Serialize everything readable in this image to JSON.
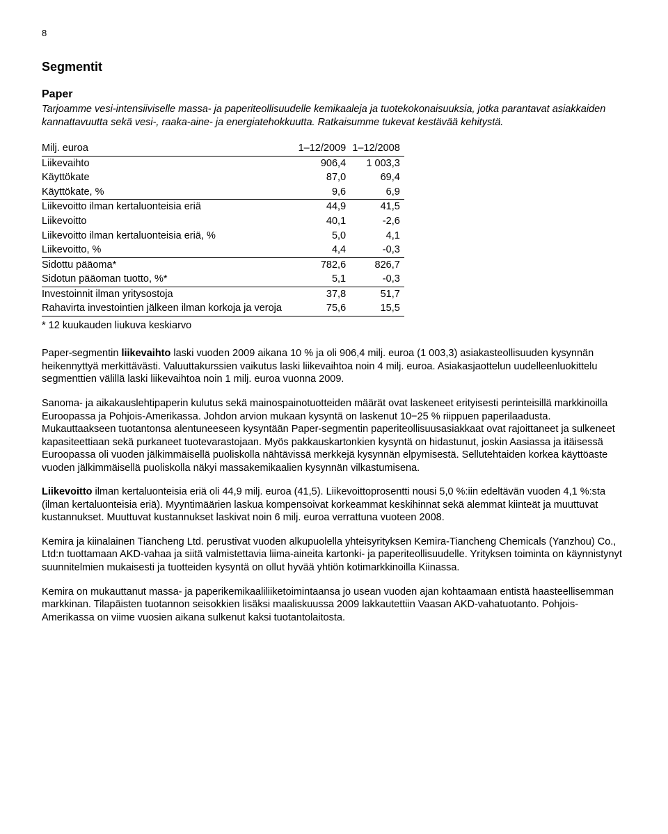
{
  "page_number": "8",
  "h_segments": "Segmentit",
  "h_paper": "Paper",
  "intro": "Tarjoamme vesi-intensiiviselle massa- ja paperiteollisuudelle kemikaaleja ja tuotekokonaisuuksia, jotka parantavat asiakkaiden kannattavuutta sekä vesi-, raaka-aine- ja energiatehokkuutta. Ratkaisumme tukevat kestävää kehitystä.",
  "table": {
    "header_label": "Milj. euroa",
    "col1": "1–12/2009",
    "col2": "1–12/2008",
    "rows": [
      {
        "label": "Liikevaihto",
        "v1": "906,4",
        "v2": "1 003,3",
        "underline": false
      },
      {
        "label": "Käyttökate",
        "v1": "87,0",
        "v2": "69,4",
        "underline": false
      },
      {
        "label": "Käyttökate, %",
        "v1": "9,6",
        "v2": "6,9",
        "underline": true
      },
      {
        "label": "Liikevoitto ilman kertaluonteisia eriä",
        "v1": "44,9",
        "v2": "41,5",
        "underline": false
      },
      {
        "label": "Liikevoitto",
        "v1": "40,1",
        "v2": "-2,6",
        "underline": false
      },
      {
        "label": "Liikevoitto ilman kertaluonteisia eriä, %",
        "v1": "5,0",
        "v2": "4,1",
        "underline": false
      },
      {
        "label": "Liikevoitto, %",
        "v1": "4,4",
        "v2": "-0,3",
        "underline": true
      },
      {
        "label": "Sidottu pääoma*",
        "v1": "782,6",
        "v2": "826,7",
        "underline": false
      },
      {
        "label": "Sidotun pääoman tuotto, %*",
        "v1": "5,1",
        "v2": "-0,3",
        "underline": true
      },
      {
        "label": "Investoinnit ilman yritysostoja",
        "v1": "37,8",
        "v2": "51,7",
        "underline": false
      },
      {
        "label": "Rahavirta investointien jälkeen ilman korkoja ja veroja",
        "v1": "75,6",
        "v2": "15,5",
        "underline": true
      }
    ],
    "footnote": "* 12 kuukauden liukuva keskiarvo"
  },
  "para1_a": "Paper-segmentin ",
  "para1_bold": "liikevaihto",
  "para1_b": " laski vuoden 2009 aikana 10 % ja oli 906,4 milj. euroa (1 003,3) asiakasteollisuuden kysynnän heikennyttyä merkittävästi. Valuuttakurssien vaikutus laski liikevaihtoa noin 4 milj. euroa. Asiakasjaottelun uudelleenluokittelu segmenttien välillä laski liikevaihtoa noin 1 milj. euroa vuonna 2009.",
  "para2": "Sanoma- ja aikakauslehtipaperin kulutus sekä mainospainotuotteiden määrät ovat laskeneet erityisesti perinteisillä markkinoilla Euroopassa ja Pohjois-Amerikassa. Johdon arvion mukaan kysyntä on laskenut 10−25 % riippuen paperilaadusta. Mukauttaakseen tuotantonsa alentuneeseen kysyntään Paper-segmentin paperiteollisuusasiakkaat ovat rajoittaneet ja sulkeneet kapasiteettiaan sekä purkaneet tuotevarastojaan. Myös pakkauskartonkien kysyntä on hidastunut, joskin Aasiassa ja itäisessä Euroopassa oli vuoden jälkimmäisellä puoliskolla nähtävissä merkkejä kysynnän elpymisestä. Sellutehtaiden korkea käyttöaste vuoden jälkimmäisellä puoliskolla näkyi massakemikaalien kysynnän vilkastumisena.",
  "para3_bold": "Liikevoitto",
  "para3_a": " ilman kertaluonteisia eriä oli 44,9 milj. euroa (41,5). Liikevoittoprosentti nousi 5,0 %:iin edeltävän vuoden 4,1 %:sta (ilman kertaluonteisia eriä). Myyntimäärien laskua kompensoivat korkeammat keskihinnat sekä alemmat kiinteät ja muuttuvat kustannukset. Muuttuvat kustannukset laskivat noin 6 milj. euroa verrattuna vuoteen 2008.",
  "para4": "Kemira ja kiinalainen Tiancheng Ltd. perustivat vuoden alkupuolella yhteisyrityksen Kemira-Tiancheng Chemicals (Yanzhou) Co., Ltd:n tuottamaan AKD-vahaa ja siitä valmistettavia liima-aineita kartonki- ja paperiteollisuudelle. Yrityksen toiminta on käynnistynyt suunnitelmien mukaisesti ja tuotteiden kysyntä on ollut hyvää yhtiön kotimarkkinoilla Kiinassa.",
  "para5": "Kemira on mukauttanut massa- ja paperikemikaaliliiketoimintaansa jo usean vuoden ajan kohtaamaan entistä haasteellisemman markkinan. Tilapäisten tuotannon seisokkien lisäksi maaliskuussa 2009 lakkautettiin Vaasan AKD-vahatuotanto. Pohjois-Amerikassa on viime vuosien aikana sulkenut kaksi tuotantolaitosta."
}
